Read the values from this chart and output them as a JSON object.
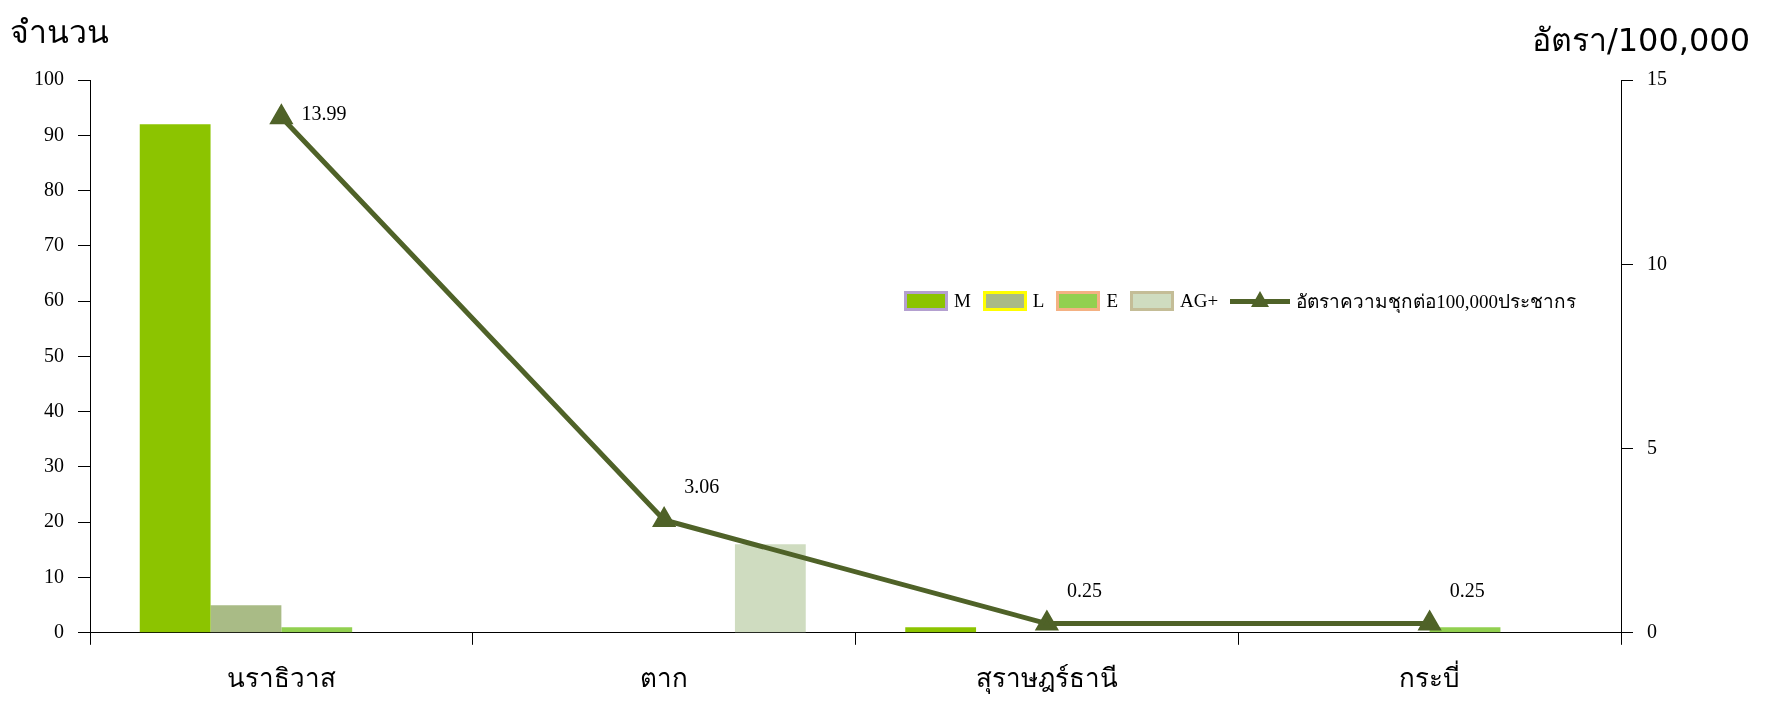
{
  "chart_data": {
    "type": "bar",
    "ylabel": "จำนวน",
    "y2label": "อัตรา/100,000",
    "categories": [
      "นราธิวาส",
      "ตาก",
      "สุราษฎร์ธานี",
      "กระบี่"
    ],
    "series": [
      {
        "name": "M",
        "color": "#8cc400",
        "values": [
          92,
          0,
          1,
          0
        ]
      },
      {
        "name": "L",
        "color": "#a9bb86",
        "values": [
          5,
          0,
          0,
          0
        ]
      },
      {
        "name": "E",
        "color": "#92d050",
        "values": [
          1,
          0,
          0,
          1
        ]
      },
      {
        "name": "AG+",
        "color": "#cfdcc0",
        "values": [
          0,
          16,
          0,
          0
        ]
      },
      {
        "name": "อัตราความชุกต่อ100,000ประชากร",
        "type": "line",
        "axis": "y2",
        "color": "#4f6228",
        "marker": "triangle",
        "values": [
          13.99,
          3.06,
          0.25,
          0.25
        ],
        "value_labels": [
          "13.99",
          "3.06",
          "0.25",
          "0.25"
        ]
      }
    ],
    "ylim": [
      0,
      100
    ],
    "yticks": [
      0,
      10,
      20,
      30,
      40,
      50,
      60,
      70,
      80,
      90,
      100
    ],
    "y2lim": [
      0,
      15
    ],
    "y2ticks": [
      0,
      5,
      10,
      15
    ],
    "grid": false,
    "legend": "right"
  }
}
